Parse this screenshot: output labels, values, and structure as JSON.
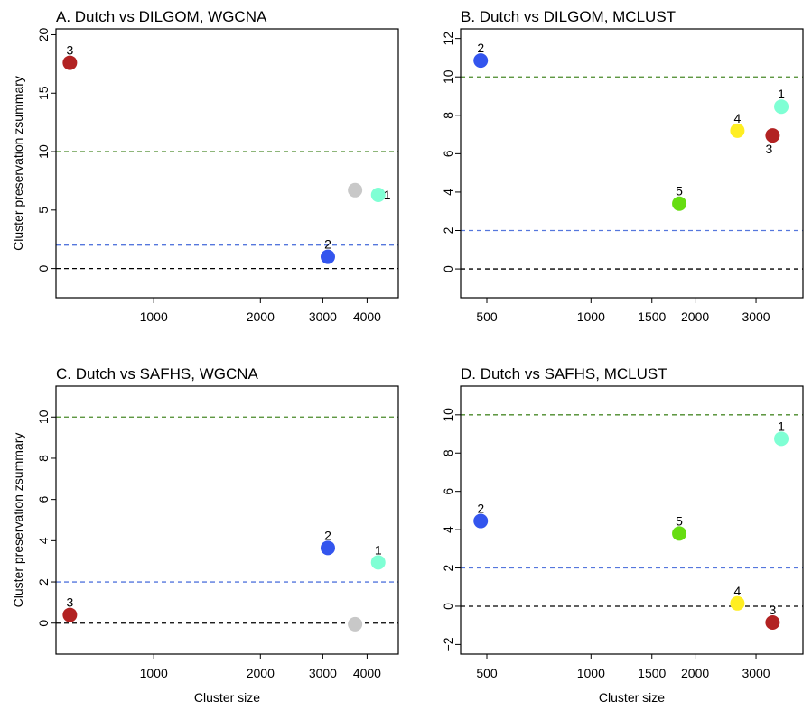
{
  "chart_data": [
    {
      "type": "scatter",
      "title": "A. Dutch vs DILGOM, WGCNA",
      "xlabel": "",
      "ylabel": "Cluster preservation zsummary",
      "xscale": "log",
      "xlim": [
        530,
        4900
      ],
      "ylim": [
        -2.5,
        20.5
      ],
      "xticks": [
        1000,
        2000,
        3000,
        4000
      ],
      "xtick_labels": [
        "1000",
        "2000",
        "3000",
        "4000"
      ],
      "yticks": [
        0,
        5,
        10,
        15,
        20
      ],
      "ytick_labels": [
        "0",
        "5",
        "10",
        "15",
        "20"
      ],
      "hlines": [
        {
          "y": 10,
          "color": "#4a8a2a"
        },
        {
          "y": 2,
          "color": "#5577dd"
        },
        {
          "y": 0,
          "color": "#000000"
        }
      ],
      "points": [
        {
          "x": 580,
          "y": 17.6,
          "label": "3",
          "color": "#b22222",
          "label_pos": "above"
        },
        {
          "x": 3100,
          "y": 1.0,
          "label": "2",
          "color": "#3355ee",
          "label_pos": "above"
        },
        {
          "x": 3700,
          "y": 6.7,
          "label": "",
          "color": "#c8c8c8",
          "label_pos": "none"
        },
        {
          "x": 4300,
          "y": 6.3,
          "label": "1",
          "color": "#7fffd4",
          "label_pos": "right"
        }
      ]
    },
    {
      "type": "scatter",
      "title": "B. Dutch vs DILGOM, MCLUST",
      "xlabel": "",
      "ylabel": "",
      "xscale": "log",
      "xlim": [
        420,
        4100
      ],
      "ylim": [
        -1.5,
        12.5
      ],
      "xticks": [
        500,
        1000,
        1500,
        2000,
        3000
      ],
      "xtick_labels": [
        "500",
        "1000",
        "1500",
        "2000",
        "3000"
      ],
      "yticks": [
        0,
        2,
        4,
        6,
        8,
        10,
        12
      ],
      "ytick_labels": [
        "0",
        "2",
        "4",
        "6",
        "8",
        "10",
        "12"
      ],
      "hlines": [
        {
          "y": 10,
          "color": "#4a8a2a"
        },
        {
          "y": 2,
          "color": "#5577dd"
        },
        {
          "y": 0,
          "color": "#000000"
        }
      ],
      "points": [
        {
          "x": 480,
          "y": 10.85,
          "label": "2",
          "color": "#3355ee",
          "label_pos": "above"
        },
        {
          "x": 3550,
          "y": 8.45,
          "label": "1",
          "color": "#7fffd4",
          "label_pos": "above"
        },
        {
          "x": 2650,
          "y": 7.2,
          "label": "4",
          "color": "#ffee22",
          "label_pos": "above"
        },
        {
          "x": 3350,
          "y": 6.95,
          "label": "3",
          "color": "#b22222",
          "label_pos": "below"
        },
        {
          "x": 1800,
          "y": 3.4,
          "label": "5",
          "color": "#66dd11",
          "label_pos": "above"
        }
      ]
    },
    {
      "type": "scatter",
      "title": "C. Dutch vs SAFHS, WGCNA",
      "xlabel": "Cluster size",
      "ylabel": "Cluster preservation zsummary",
      "xscale": "log",
      "xlim": [
        530,
        4900
      ],
      "ylim": [
        -1.5,
        11.5
      ],
      "xticks": [
        1000,
        2000,
        3000,
        4000
      ],
      "xtick_labels": [
        "1000",
        "2000",
        "3000",
        "4000"
      ],
      "yticks": [
        0,
        2,
        4,
        6,
        8,
        10
      ],
      "ytick_labels": [
        "0",
        "2",
        "4",
        "6",
        "8",
        "10"
      ],
      "hlines": [
        {
          "y": 10,
          "color": "#4a8a2a"
        },
        {
          "y": 2,
          "color": "#5577dd"
        },
        {
          "y": 0,
          "color": "#000000"
        }
      ],
      "points": [
        {
          "x": 580,
          "y": 0.4,
          "label": "3",
          "color": "#b22222",
          "label_pos": "above"
        },
        {
          "x": 3100,
          "y": 3.65,
          "label": "2",
          "color": "#3355ee",
          "label_pos": "above"
        },
        {
          "x": 3700,
          "y": -0.05,
          "label": "",
          "color": "#c8c8c8",
          "label_pos": "none"
        },
        {
          "x": 4300,
          "y": 2.95,
          "label": "1",
          "color": "#7fffd4",
          "label_pos": "above"
        }
      ]
    },
    {
      "type": "scatter",
      "title": "D. Dutch vs SAFHS, MCLUST",
      "xlabel": "Cluster size",
      "ylabel": "",
      "xscale": "log",
      "xlim": [
        420,
        4100
      ],
      "ylim": [
        -2.5,
        11.5
      ],
      "xticks": [
        500,
        1000,
        1500,
        2000,
        3000
      ],
      "xtick_labels": [
        "500",
        "1000",
        "1500",
        "2000",
        "3000"
      ],
      "yticks": [
        -2,
        0,
        2,
        4,
        6,
        8,
        10
      ],
      "ytick_labels": [
        "−2",
        "0",
        "2",
        "4",
        "6",
        "8",
        "10"
      ],
      "hlines": [
        {
          "y": 10,
          "color": "#4a8a2a"
        },
        {
          "y": 2,
          "color": "#5577dd"
        },
        {
          "y": 0,
          "color": "#000000"
        }
      ],
      "points": [
        {
          "x": 480,
          "y": 4.45,
          "label": "2",
          "color": "#3355ee",
          "label_pos": "above"
        },
        {
          "x": 3550,
          "y": 8.75,
          "label": "1",
          "color": "#7fffd4",
          "label_pos": "above"
        },
        {
          "x": 1800,
          "y": 3.8,
          "label": "5",
          "color": "#66dd11",
          "label_pos": "above"
        },
        {
          "x": 2650,
          "y": 0.15,
          "label": "4",
          "color": "#ffee22",
          "label_pos": "above"
        },
        {
          "x": 3350,
          "y": -0.85,
          "label": "3",
          "color": "#b22222",
          "label_pos": "above"
        }
      ]
    }
  ]
}
